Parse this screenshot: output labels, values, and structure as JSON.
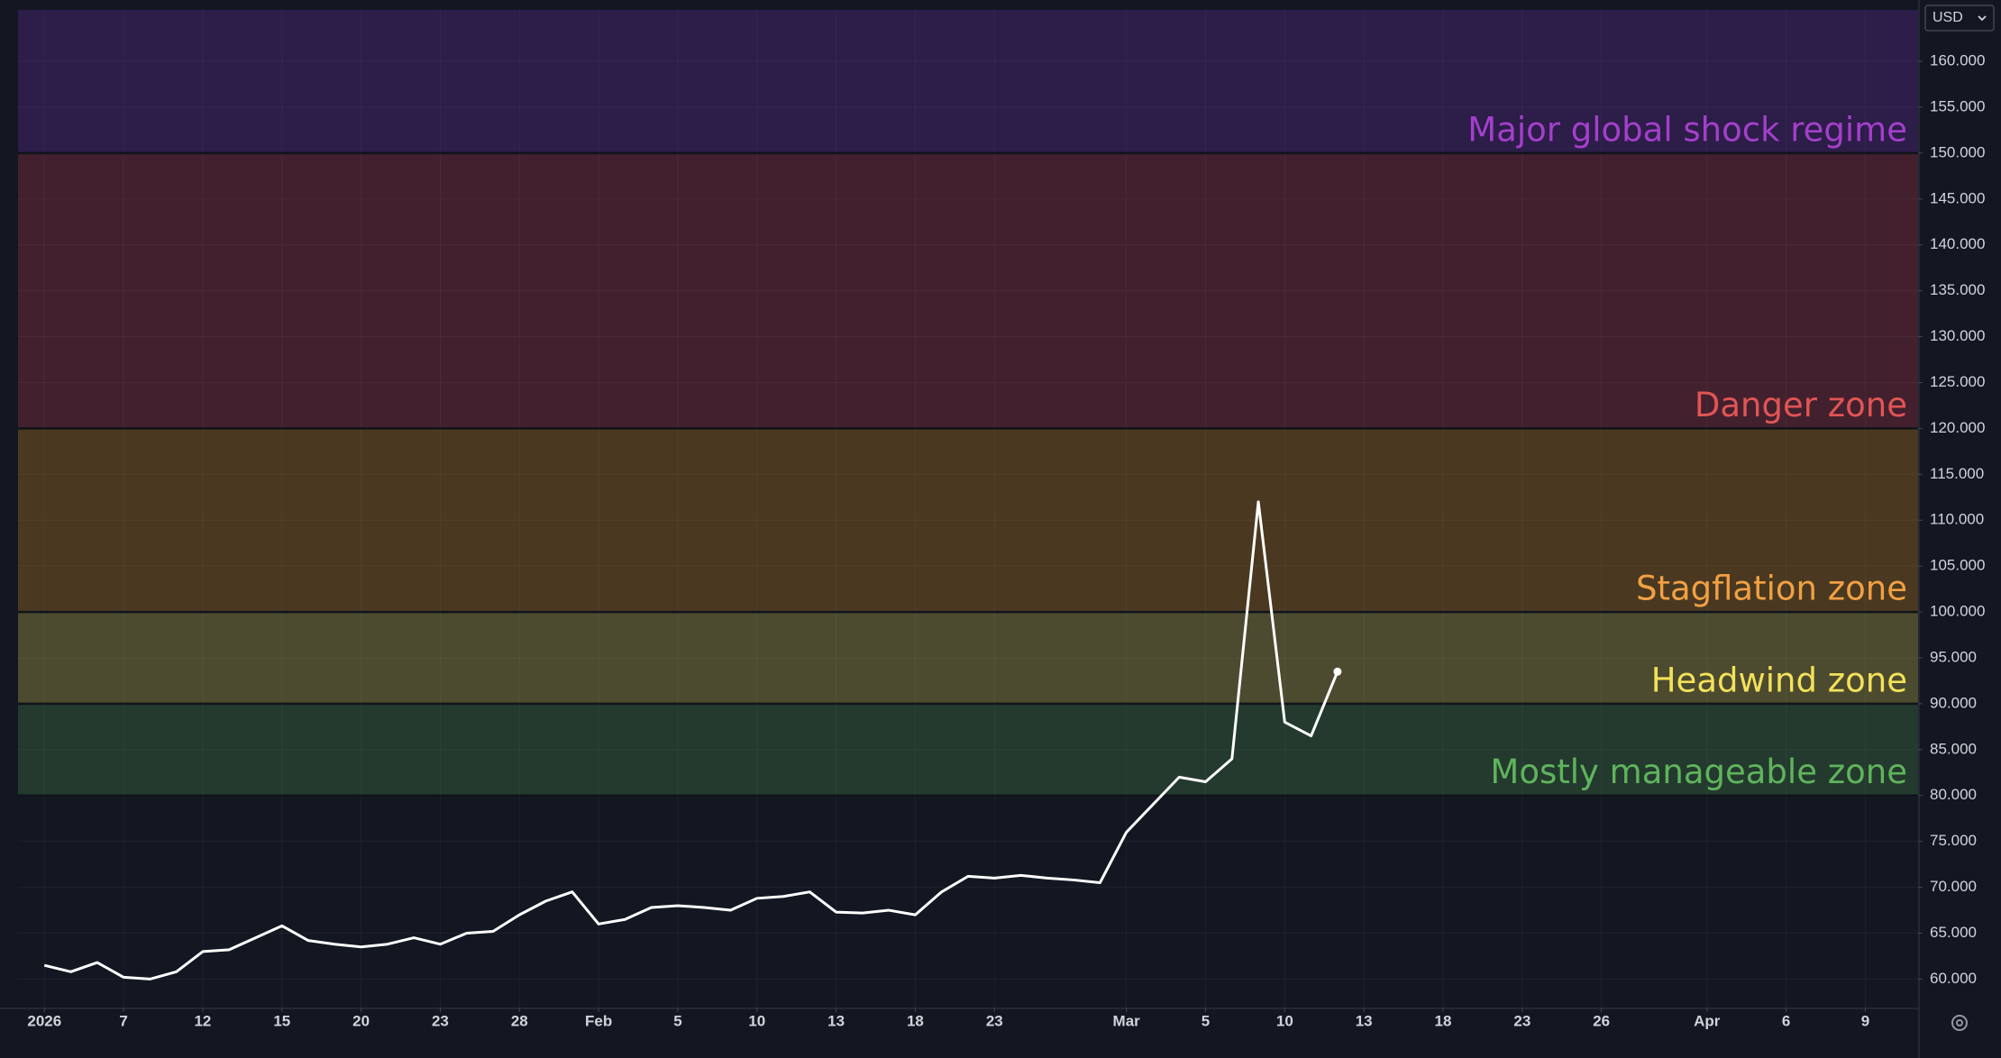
{
  "chart_data": {
    "type": "line",
    "currency": "USD",
    "xlim": [
      "2026-01-01",
      "2026-04-13"
    ],
    "ylim": [
      56.9,
      165.6
    ],
    "grid": true,
    "xticks": [
      {
        "value": "2026-01-02",
        "label": "2026"
      },
      {
        "value": "2026-01-07",
        "label": "7"
      },
      {
        "value": "2026-01-12",
        "label": "12"
      },
      {
        "value": "2026-01-15",
        "label": "15"
      },
      {
        "value": "2026-01-20",
        "label": "20"
      },
      {
        "value": "2026-01-23",
        "label": "23"
      },
      {
        "value": "2026-01-28",
        "label": "28"
      },
      {
        "value": "2026-02-02",
        "label": "Feb"
      },
      {
        "value": "2026-02-05",
        "label": "5"
      },
      {
        "value": "2026-02-10",
        "label": "10"
      },
      {
        "value": "2026-02-13",
        "label": "13"
      },
      {
        "value": "2026-02-18",
        "label": "18"
      },
      {
        "value": "2026-02-23",
        "label": "23"
      },
      {
        "value": "2026-03-02",
        "label": "Mar"
      },
      {
        "value": "2026-03-05",
        "label": "5"
      },
      {
        "value": "2026-03-10",
        "label": "10"
      },
      {
        "value": "2026-03-13",
        "label": "13"
      },
      {
        "value": "2026-03-18",
        "label": "18"
      },
      {
        "value": "2026-03-23",
        "label": "23"
      },
      {
        "value": "2026-03-26",
        "label": "26"
      },
      {
        "value": "2026-04-01",
        "label": "Apr"
      },
      {
        "value": "2026-04-06",
        "label": "6"
      },
      {
        "value": "2026-04-09",
        "label": "9"
      }
    ],
    "yticks": [
      {
        "value": 60,
        "label": "60.000"
      },
      {
        "value": 65,
        "label": "65.000"
      },
      {
        "value": 70,
        "label": "70.000"
      },
      {
        "value": 75,
        "label": "75.000"
      },
      {
        "value": 80,
        "label": "80.000"
      },
      {
        "value": 85,
        "label": "85.000"
      },
      {
        "value": 90,
        "label": "90.000"
      },
      {
        "value": 95,
        "label": "95.000"
      },
      {
        "value": 100,
        "label": "100.000"
      },
      {
        "value": 105,
        "label": "105.000"
      },
      {
        "value": 110,
        "label": "110.000"
      },
      {
        "value": 115,
        "label": "115.000"
      },
      {
        "value": 120,
        "label": "120.000"
      },
      {
        "value": 125,
        "label": "125.000"
      },
      {
        "value": 130,
        "label": "130.000"
      },
      {
        "value": 135,
        "label": "135.000"
      },
      {
        "value": 140,
        "label": "140.000"
      },
      {
        "value": 145,
        "label": "145.000"
      },
      {
        "value": 150,
        "label": "150.000"
      },
      {
        "value": 155,
        "label": "155.000"
      },
      {
        "value": 160,
        "label": "160.000"
      }
    ],
    "zones": [
      {
        "label": "Mostly manageable zone",
        "from": 80,
        "to": 90,
        "color": "#243a2e",
        "label_color": "#5fb45c"
      },
      {
        "label": "Headwind zone",
        "from": 90,
        "to": 100,
        "color": "#4c4b2f",
        "label_color": "#f3e15a"
      },
      {
        "label": "Stagflation zone",
        "from": 100,
        "to": 120,
        "color": "#4a3920",
        "label_color": "#f2a044"
      },
      {
        "label": "Danger zone",
        "from": 120,
        "to": 150,
        "color": "#43202d",
        "label_color": "#e05555"
      },
      {
        "label": "Major global shock regime",
        "from": 150,
        "to": 165.6,
        "color": "#2c1d49",
        "label_color": "#a43fcb"
      }
    ],
    "x": [
      "2026-01-02",
      "2026-01-05",
      "2026-01-06",
      "2026-01-07",
      "2026-01-08",
      "2026-01-09",
      "2026-01-12",
      "2026-01-13",
      "2026-01-14",
      "2026-01-15",
      "2026-01-16",
      "2026-01-19",
      "2026-01-20",
      "2026-01-21",
      "2026-01-22",
      "2026-01-23",
      "2026-01-26",
      "2026-01-27",
      "2026-01-28",
      "2026-01-29",
      "2026-01-30",
      "2026-02-02",
      "2026-02-03",
      "2026-02-04",
      "2026-02-05",
      "2026-02-06",
      "2026-02-09",
      "2026-02-10",
      "2026-02-11",
      "2026-02-12",
      "2026-02-13",
      "2026-02-16",
      "2026-02-17",
      "2026-02-18",
      "2026-02-19",
      "2026-02-20",
      "2026-02-23",
      "2026-02-24",
      "2026-02-25",
      "2026-02-26",
      "2026-02-27",
      "2026-03-02",
      "2026-03-03",
      "2026-03-04",
      "2026-03-05",
      "2026-03-06",
      "2026-03-09",
      "2026-03-10",
      "2026-03-11",
      "2026-03-12"
    ],
    "series": [
      {
        "color": "#ffffff",
        "values": [
          61.5,
          60.8,
          61.8,
          60.2,
          60.0,
          60.8,
          63.0,
          63.2,
          64.5,
          65.8,
          64.2,
          63.8,
          63.5,
          63.8,
          64.5,
          63.8,
          65.0,
          65.2,
          67.0,
          68.5,
          69.5,
          66.0,
          66.5,
          67.8,
          68.0,
          67.8,
          67.5,
          68.8,
          69.0,
          69.5,
          67.3,
          67.2,
          67.5,
          67.0,
          69.5,
          71.2,
          71.0,
          71.3,
          71.0,
          70.8,
          70.5,
          76.0,
          79.0,
          82.0,
          81.5,
          84.0,
          112.0,
          88.0,
          86.5,
          93.5
        ]
      }
    ]
  }
}
